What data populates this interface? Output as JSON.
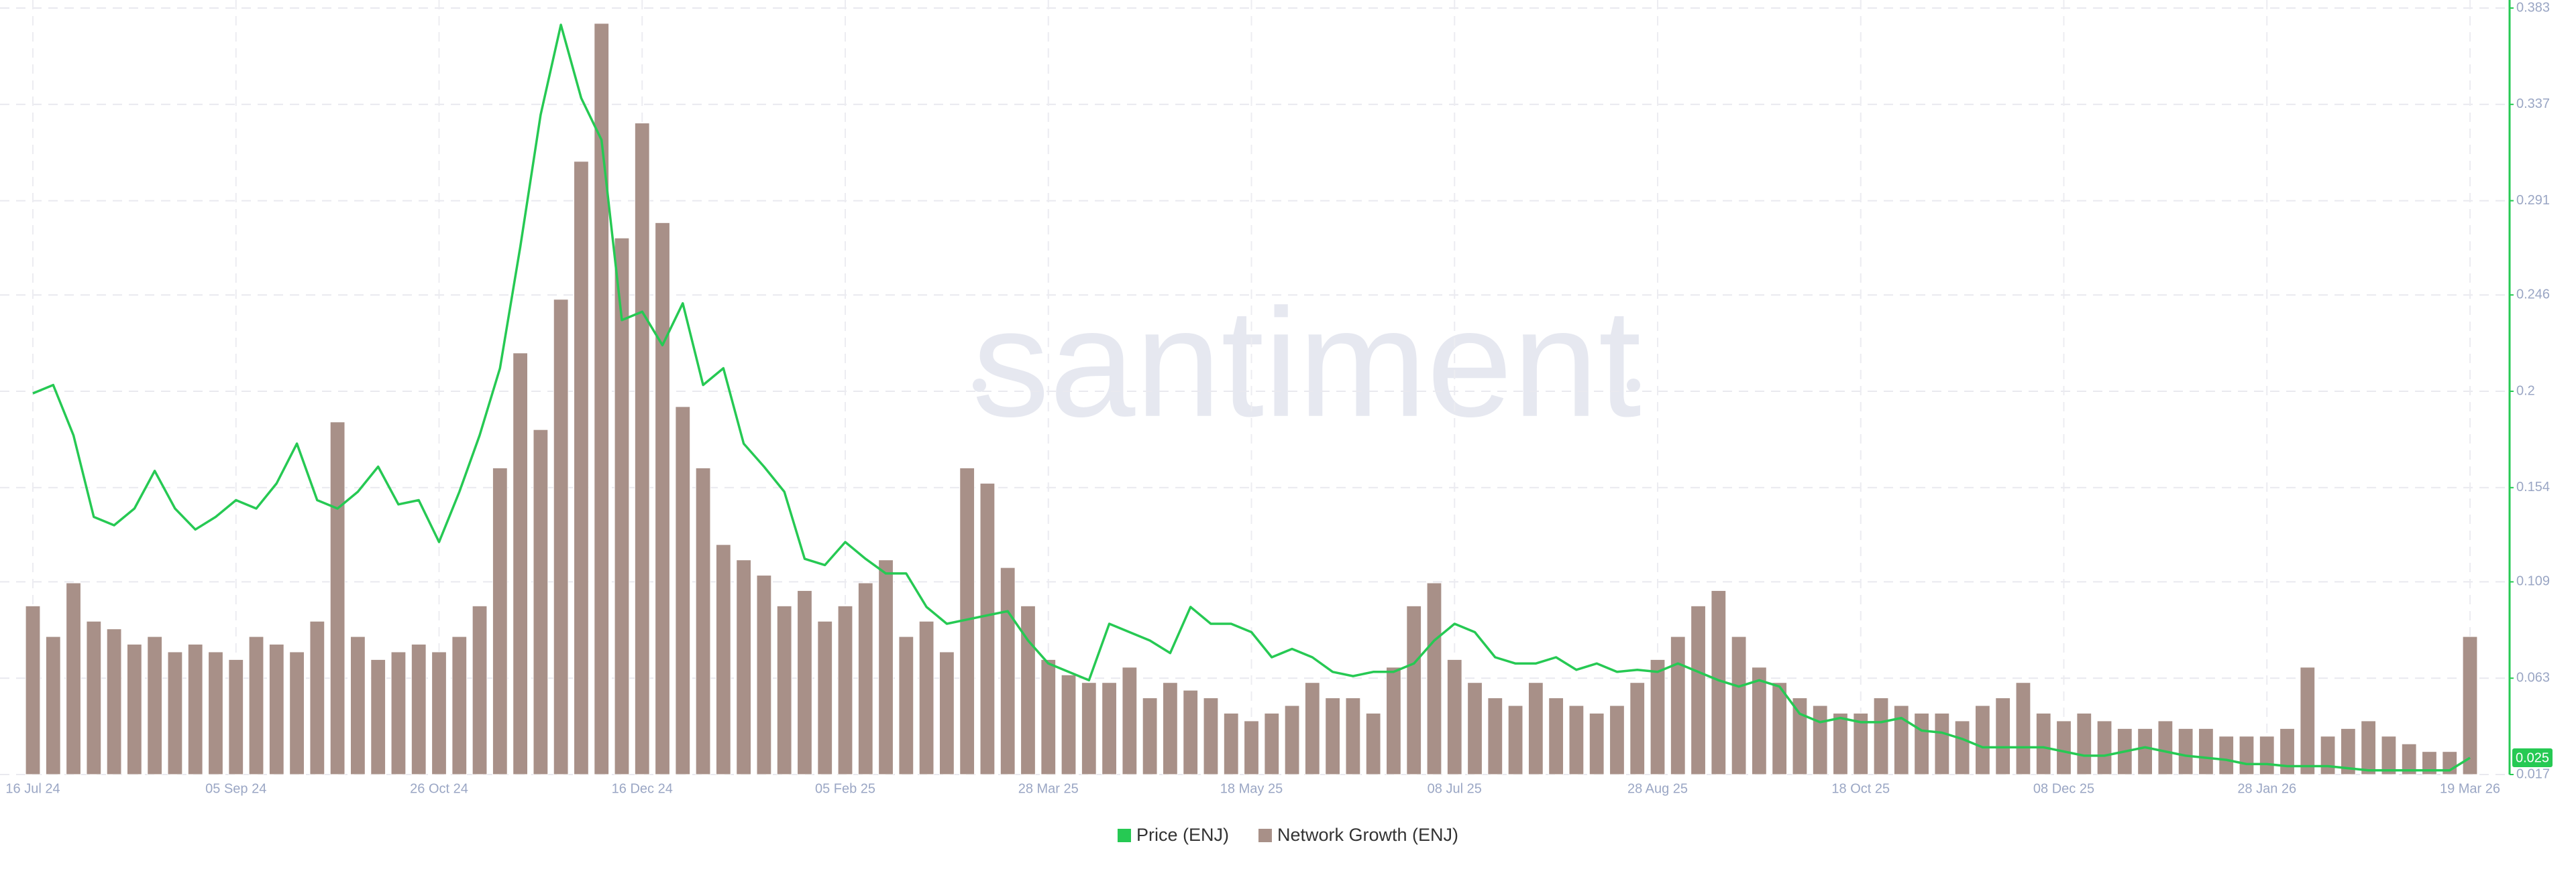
{
  "chart_data": {
    "type": "combo",
    "watermark": "santiment",
    "categories": [
      "16 Jul 24",
      null,
      null,
      null,
      null,
      null,
      null,
      null,
      null,
      null,
      "05 Sep 24",
      null,
      null,
      null,
      null,
      null,
      null,
      null,
      null,
      null,
      "26 Oct 24",
      null,
      null,
      null,
      null,
      null,
      null,
      null,
      null,
      null,
      "16 Dec 24",
      null,
      null,
      null,
      null,
      null,
      null,
      null,
      null,
      null,
      "05 Feb 25",
      null,
      null,
      null,
      null,
      null,
      null,
      null,
      null,
      null,
      "28 Mar 25",
      null,
      null,
      null,
      null,
      null,
      null,
      null,
      null,
      null,
      "18 May 25",
      null,
      null,
      null,
      null,
      null,
      null,
      null,
      null,
      null,
      "08 Jul 25",
      null,
      null,
      null,
      null,
      null,
      null,
      null,
      null,
      null,
      "28 Aug 25",
      null,
      null,
      null,
      null,
      null,
      null,
      null,
      null,
      null,
      "18 Oct 25",
      null,
      null,
      null,
      null,
      null,
      null,
      null,
      null,
      null,
      "08 Dec 25",
      null,
      null,
      null,
      null,
      null,
      null,
      null,
      null,
      null,
      "28 Jan 26",
      null,
      null,
      null,
      null,
      null,
      null,
      null,
      null,
      null,
      "19 Mar 26"
    ],
    "series": [
      {
        "name": "Price (ENJ)",
        "type": "line",
        "axis": "y2",
        "color": "#26c953",
        "values": [
          0.199,
          0.203,
          0.179,
          0.14,
          0.136,
          0.144,
          0.162,
          0.144,
          0.134,
          0.14,
          0.148,
          0.144,
          0.156,
          0.175,
          0.148,
          0.144,
          0.152,
          0.164,
          0.146,
          0.148,
          0.128,
          0.152,
          0.179,
          0.211,
          0.269,
          0.332,
          0.375,
          0.34,
          0.32,
          0.234,
          0.238,
          0.222,
          0.242,
          0.203,
          0.211,
          0.175,
          0.164,
          0.152,
          0.12,
          0.117,
          0.128,
          0.12,
          0.113,
          0.113,
          0.097,
          0.089,
          0.091,
          0.093,
          0.095,
          0.081,
          0.07,
          0.066,
          0.062,
          0.089,
          0.085,
          0.081,
          0.075,
          0.097,
          0.089,
          0.089,
          0.085,
          0.073,
          0.077,
          0.073,
          0.066,
          0.064,
          0.066,
          0.066,
          0.07,
          0.081,
          0.089,
          0.085,
          0.073,
          0.07,
          0.07,
          0.073,
          0.067,
          0.07,
          0.066,
          0.067,
          0.066,
          0.07,
          0.066,
          0.062,
          0.059,
          0.062,
          0.059,
          0.046,
          0.042,
          0.044,
          0.042,
          0.042,
          0.044,
          0.038,
          0.037,
          0.034,
          0.03,
          0.03,
          0.03,
          0.03,
          0.028,
          0.026,
          0.026,
          0.028,
          0.03,
          0.028,
          0.026,
          0.025,
          0.024,
          0.022,
          0.022,
          0.021,
          0.021,
          0.021,
          0.02,
          0.019,
          0.019,
          0.019,
          0.019,
          0.019,
          0.025
        ]
      },
      {
        "name": "Network Growth (ENJ)",
        "type": "bar",
        "color": "#a89088",
        "values": [
          22,
          18,
          25,
          20,
          19,
          17,
          18,
          16,
          17,
          16,
          15,
          18,
          17,
          16,
          20,
          46,
          18,
          15,
          16,
          17,
          16,
          18,
          22,
          40,
          55,
          45,
          62,
          80,
          98,
          70,
          85,
          72,
          48,
          40,
          30,
          28,
          26,
          22,
          24,
          20,
          22,
          25,
          28,
          18,
          20,
          16,
          40,
          38,
          27,
          22,
          15,
          13,
          12,
          12,
          14,
          10,
          12,
          11,
          10,
          8,
          7,
          8,
          9,
          12,
          10,
          10,
          8,
          14,
          22,
          25,
          15,
          12,
          10,
          9,
          12,
          10,
          9,
          8,
          9,
          12,
          15,
          18,
          22,
          24,
          18,
          14,
          12,
          10,
          9,
          8,
          8,
          10,
          9,
          8,
          8,
          7,
          9,
          10,
          12,
          8,
          7,
          8,
          7,
          6,
          6,
          7,
          6,
          6,
          5,
          5,
          5,
          6,
          14,
          5,
          6,
          7,
          5,
          4,
          3,
          3,
          18
        ]
      }
    ],
    "ylim": [
      0,
      100
    ],
    "y2lim": [
      0.017,
      0.383
    ],
    "y2ticks": [
      0.383,
      0.337,
      0.291,
      0.246,
      0.2,
      0.154,
      0.109,
      0.063,
      0.017
    ],
    "grid": true
  }
}
